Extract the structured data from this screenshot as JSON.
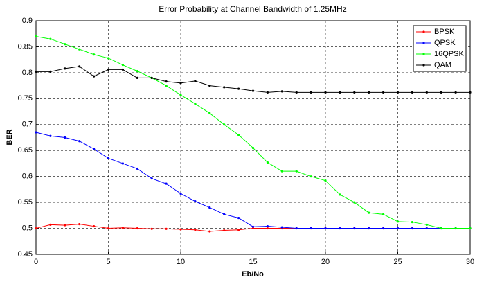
{
  "chart_data": {
    "type": "line",
    "title": "Error Probability at Channel Bandwidth of 1.25MHz",
    "x_label": "Eb/No",
    "y_label": "BER",
    "x": [
      0,
      1,
      2,
      3,
      4,
      5,
      6,
      7,
      8,
      9,
      10,
      11,
      12,
      13,
      14,
      15,
      16,
      17,
      18,
      19,
      20,
      21,
      22,
      23,
      24,
      25,
      26,
      27,
      28,
      29,
      30
    ],
    "series": [
      {
        "name": "BPSK",
        "color": "#ff0000",
        "values": [
          0.5,
          0.507,
          0.506,
          0.508,
          0.504,
          0.5,
          0.501,
          0.5,
          0.499,
          0.499,
          0.498,
          0.497,
          0.494,
          0.496,
          0.497,
          0.5,
          0.5,
          0.5,
          0.5,
          0.5,
          0.5,
          0.5,
          0.5,
          0.5,
          0.5,
          0.5,
          0.5,
          0.5,
          0.5,
          0.5,
          0.5
        ]
      },
      {
        "name": "QPSK",
        "color": "#0000ff",
        "values": [
          0.685,
          0.678,
          0.675,
          0.668,
          0.653,
          0.635,
          0.625,
          0.615,
          0.596,
          0.586,
          0.567,
          0.552,
          0.54,
          0.527,
          0.52,
          0.503,
          0.504,
          0.502,
          0.5,
          0.5,
          0.5,
          0.5,
          0.5,
          0.5,
          0.5,
          0.5,
          0.5,
          0.5,
          0.5,
          0.5,
          0.5
        ]
      },
      {
        "name": "16QPSK",
        "color": "#00ff00",
        "values": [
          0.87,
          0.865,
          0.855,
          0.845,
          0.835,
          0.828,
          0.815,
          0.803,
          0.79,
          0.775,
          0.757,
          0.74,
          0.722,
          0.7,
          0.68,
          0.655,
          0.627,
          0.61,
          0.61,
          0.6,
          0.592,
          0.565,
          0.55,
          0.53,
          0.527,
          0.513,
          0.512,
          0.507,
          0.5,
          0.5,
          0.5
        ]
      },
      {
        "name": "QAM",
        "color": "#000000",
        "values": [
          0.802,
          0.802,
          0.808,
          0.812,
          0.793,
          0.806,
          0.806,
          0.79,
          0.79,
          0.783,
          0.78,
          0.784,
          0.775,
          0.772,
          0.769,
          0.765,
          0.762,
          0.764,
          0.762,
          0.762,
          0.762,
          0.762,
          0.762,
          0.762,
          0.762,
          0.762,
          0.762,
          0.762,
          0.762,
          0.762,
          0.762
        ]
      }
    ],
    "xlim": [
      0,
      30
    ],
    "xticks": [
      0,
      5,
      10,
      15,
      20,
      25,
      30
    ],
    "ylim": [
      0.45,
      0.9
    ],
    "yticks": [
      0.45,
      0.5,
      0.55,
      0.6,
      0.65,
      0.7,
      0.75,
      0.8,
      0.85,
      0.9
    ],
    "grid": true,
    "legend": "top-right"
  }
}
